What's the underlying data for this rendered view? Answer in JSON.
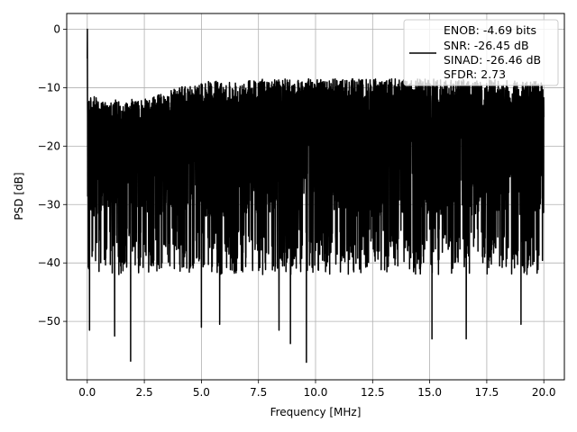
{
  "chart_data": {
    "type": "line",
    "title": "",
    "xlabel": "Frequency [MHz]",
    "ylabel": "PSD [dB]",
    "xlim": [
      -0.9,
      20.9
    ],
    "ylim": [
      -60,
      2.7
    ],
    "xticks": [
      "0.0",
      "2.5",
      "5.0",
      "7.5",
      "10.0",
      "12.5",
      "15.0",
      "17.5",
      "20.0"
    ],
    "xtick_values": [
      0,
      2.5,
      5,
      7.5,
      10,
      12.5,
      15,
      17.5,
      20
    ],
    "yticks": [
      "0",
      "−10",
      "−20",
      "−30",
      "−40",
      "−50"
    ],
    "ytick_values": [
      0,
      -10,
      -20,
      -30,
      -40,
      -50
    ],
    "grid": true,
    "legend_position": "top-right",
    "series": [
      {
        "color": "#000000",
        "x_range": [
          0,
          20
        ],
        "peak": {
          "x": 0.0,
          "y": 0
        },
        "upper_envelope_points": [
          [
            0.05,
            -11
          ],
          [
            1,
            -13
          ],
          [
            2.5,
            -12
          ],
          [
            4,
            -10
          ],
          [
            5,
            -9
          ],
          [
            7.5,
            -8.5
          ],
          [
            10,
            -8.5
          ],
          [
            12.5,
            -8.5
          ],
          [
            15,
            -8.5
          ],
          [
            17.5,
            -8.5
          ],
          [
            20,
            -9
          ]
        ],
        "band_center": -22,
        "notable_minima": [
          {
            "x": 0.1,
            "y": -51.5
          },
          {
            "x": 1.2,
            "y": -52.5
          },
          {
            "x": 1.9,
            "y": -56.8
          },
          {
            "x": 5.0,
            "y": -51
          },
          {
            "x": 5.8,
            "y": -50.5
          },
          {
            "x": 8.4,
            "y": -51.5
          },
          {
            "x": 8.9,
            "y": -53.8
          },
          {
            "x": 9.6,
            "y": -57
          },
          {
            "x": 15.1,
            "y": -53
          },
          {
            "x": 16.6,
            "y": -53
          },
          {
            "x": 19.0,
            "y": -50.5
          }
        ]
      }
    ],
    "legend": {
      "lines": [
        "ENOB: -4.69 bits",
        "SNR: -26.45 dB",
        "SINAD: -26.46 dB",
        "SFDR: 2.73"
      ]
    }
  }
}
